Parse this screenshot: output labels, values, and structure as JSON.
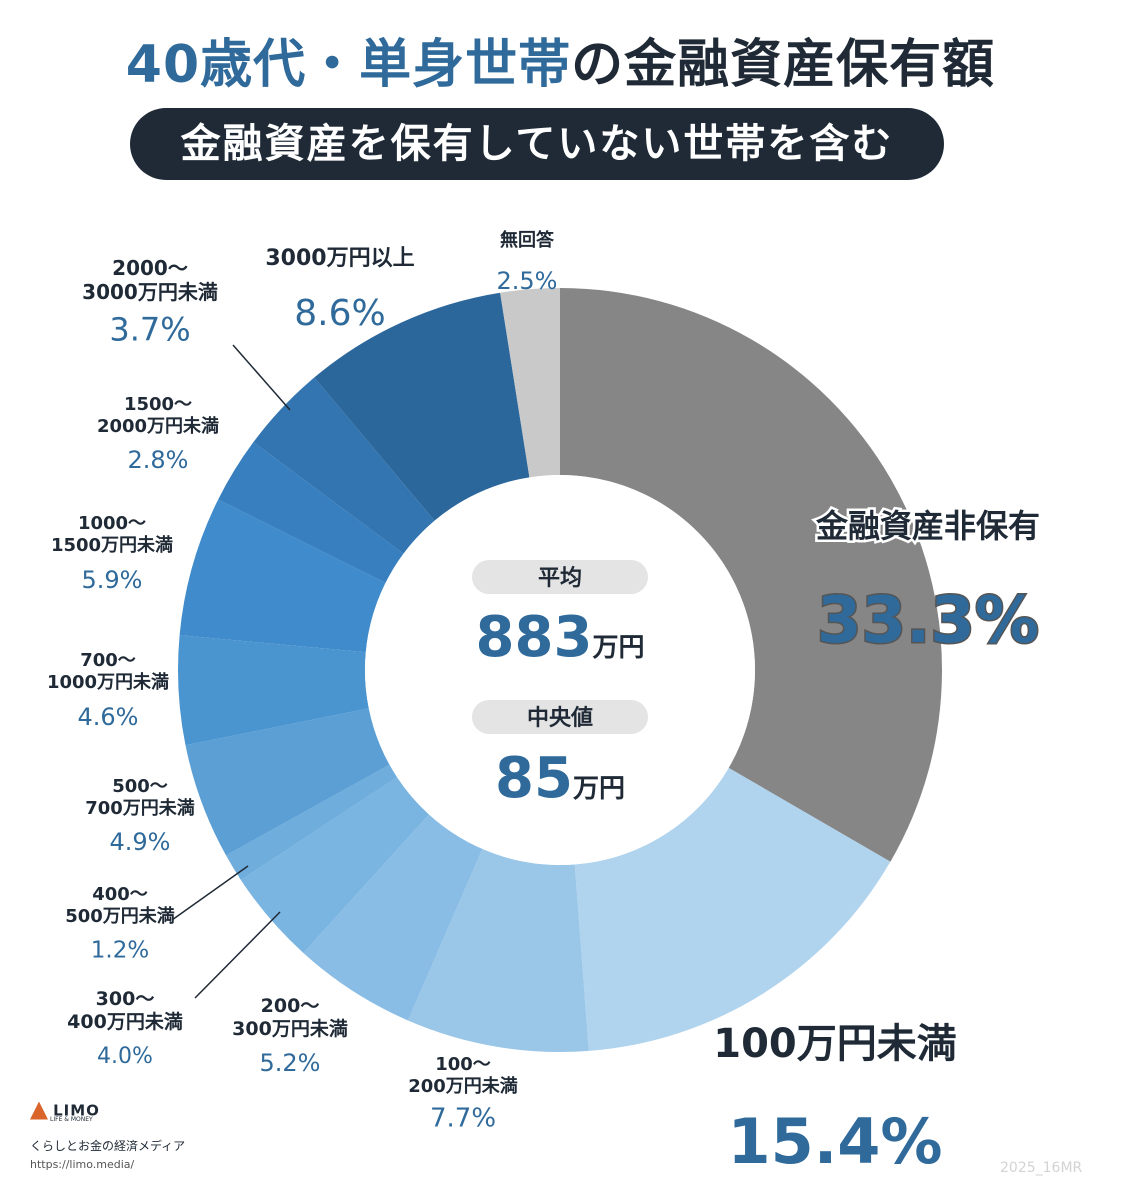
{
  "header": {
    "title_part1": "40歳代・単身世帯",
    "title_part2": "の金融資産保有額",
    "subtitle": "金融資産を保有していない世帯を含む"
  },
  "center": {
    "avg_label": "平均",
    "avg_value": "883",
    "avg_unit": "万円",
    "median_label": "中央値",
    "median_value": "85",
    "median_unit": "万円"
  },
  "footer": {
    "logo_name": "LIMO",
    "logo_sub": "LIFE & MONEY",
    "tagline": "くらしとお金の経済メディア",
    "url": "https://limo.media/",
    "credit": "2025_16MR"
  },
  "chart_data": {
    "type": "pie",
    "donut": true,
    "categories": [
      "金融資産非保有",
      "100万円未満",
      "100〜200万円未満",
      "200〜300万円未満",
      "300〜400万円未満",
      "400〜500万円未満",
      "500〜700万円未満",
      "700〜1000万円未満",
      "1000〜1500万円未満",
      "1500〜2000万円未満",
      "2000〜3000万円未満",
      "3000万円以上",
      "無回答"
    ],
    "values": [
      33.3,
      15.4,
      7.7,
      5.2,
      4.0,
      1.2,
      4.9,
      4.6,
      5.9,
      2.8,
      3.7,
      8.6,
      2.5
    ],
    "colors": [
      "#868686",
      "#b0d3ee",
      "#9ac6e8",
      "#89bde5",
      "#7ab4e1",
      "#6eaddc",
      "#5b9fd5",
      "#4a94cf",
      "#3f8bcb",
      "#387fbf",
      "#3375b1",
      "#2c679c",
      "#c9c9c9"
    ],
    "labels": [
      {
        "lines": [
          "金融資産非保有"
        ],
        "pct": "33.3%"
      },
      {
        "lines": [
          "100万円未満"
        ],
        "pct": "15.4%"
      },
      {
        "lines": [
          "100〜",
          "200万円未満"
        ],
        "pct": "7.7%"
      },
      {
        "lines": [
          "200〜",
          "300万円未満"
        ],
        "pct": "5.2%"
      },
      {
        "lines": [
          "300〜",
          "400万円未満"
        ],
        "pct": "4.0%"
      },
      {
        "lines": [
          "400〜",
          "500万円未満"
        ],
        "pct": "1.2%"
      },
      {
        "lines": [
          "500〜",
          "700万円未満"
        ],
        "pct": "4.9%"
      },
      {
        "lines": [
          "700〜",
          "1000万円未満"
        ],
        "pct": "4.6%"
      },
      {
        "lines": [
          "1000〜",
          "1500万円未満"
        ],
        "pct": "5.9%"
      },
      {
        "lines": [
          "1500〜",
          "2000万円未満"
        ],
        "pct": "2.8%"
      },
      {
        "lines": [
          "2000〜",
          "3000万円未満"
        ],
        "pct": "3.7%"
      },
      {
        "lines": [
          "3000万円以上"
        ],
        "pct": "8.6%"
      },
      {
        "lines": [
          "無回答"
        ],
        "pct": "2.5%"
      }
    ]
  }
}
